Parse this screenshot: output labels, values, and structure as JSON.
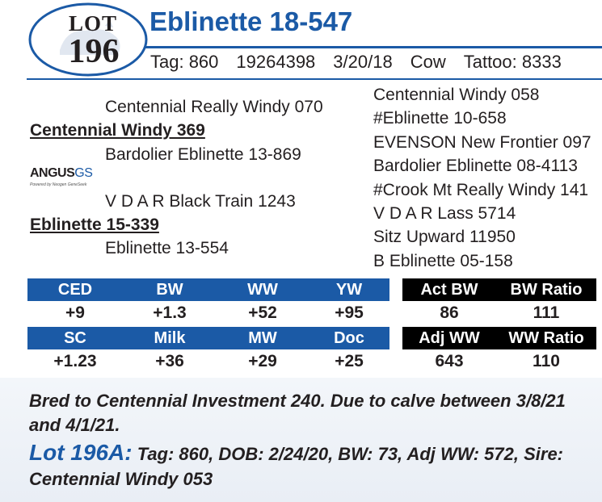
{
  "lot": {
    "word": "LOT",
    "number": "196"
  },
  "title": "Eblinette 18-547",
  "info": {
    "tag": "Tag: 860",
    "reg": "19264398",
    "dob": "3/20/18",
    "sex": "Cow",
    "tattoo": "Tattoo: 8333"
  },
  "pedigree": {
    "sire_sire": "Centennial Really Windy 070",
    "sire": "Centennial Windy 369",
    "sire_dam": "Bardolier Eblinette 13-869",
    "dam_sire": "V D A R Black Train 1243",
    "dam": "Eblinette 15-339",
    "dam_dam": "Eblinette 13-554",
    "right": [
      "Centennial Windy 058",
      "#Eblinette 10-658",
      "EVENSON New Frontier 097",
      "Bardolier Eblinette 08-4113",
      "#Crook Mt Really Windy 141",
      "V D A R Lass 5714",
      "Sitz Upward 11950",
      "B Eblinette 05-158"
    ]
  },
  "logo": {
    "main": "ANGUS",
    "gs": "GS",
    "sub": "Powered by Neogen GeneSeek"
  },
  "epd": {
    "row1_headers": [
      "CED",
      "BW",
      "WW",
      "YW"
    ],
    "row1_values": [
      "+9",
      "+1.3",
      "+52",
      "+95"
    ],
    "row2_headers": [
      "SC",
      "Milk",
      "MW",
      "Doc"
    ],
    "row2_values": [
      "+1.23",
      "+36",
      "+29",
      "+25"
    ]
  },
  "actual": {
    "row1_headers": [
      "Act BW",
      "BW Ratio"
    ],
    "row1_values": [
      "86",
      "111"
    ],
    "row2_headers": [
      "Adj WW",
      "WW Ratio"
    ],
    "row2_values": [
      "643",
      "110"
    ]
  },
  "colors": {
    "accent_blue": "#1b5aa6",
    "black": "#000000"
  },
  "note": "Bred to Centennial Investment 240. Due to calve between 3/8/21 and 4/1/21.",
  "lot_a": {
    "label": "Lot 196A:",
    "text": " Tag: 860, DOB: 2/24/20, BW: 73, Adj WW: 572, Sire: Centennial Windy 053"
  }
}
